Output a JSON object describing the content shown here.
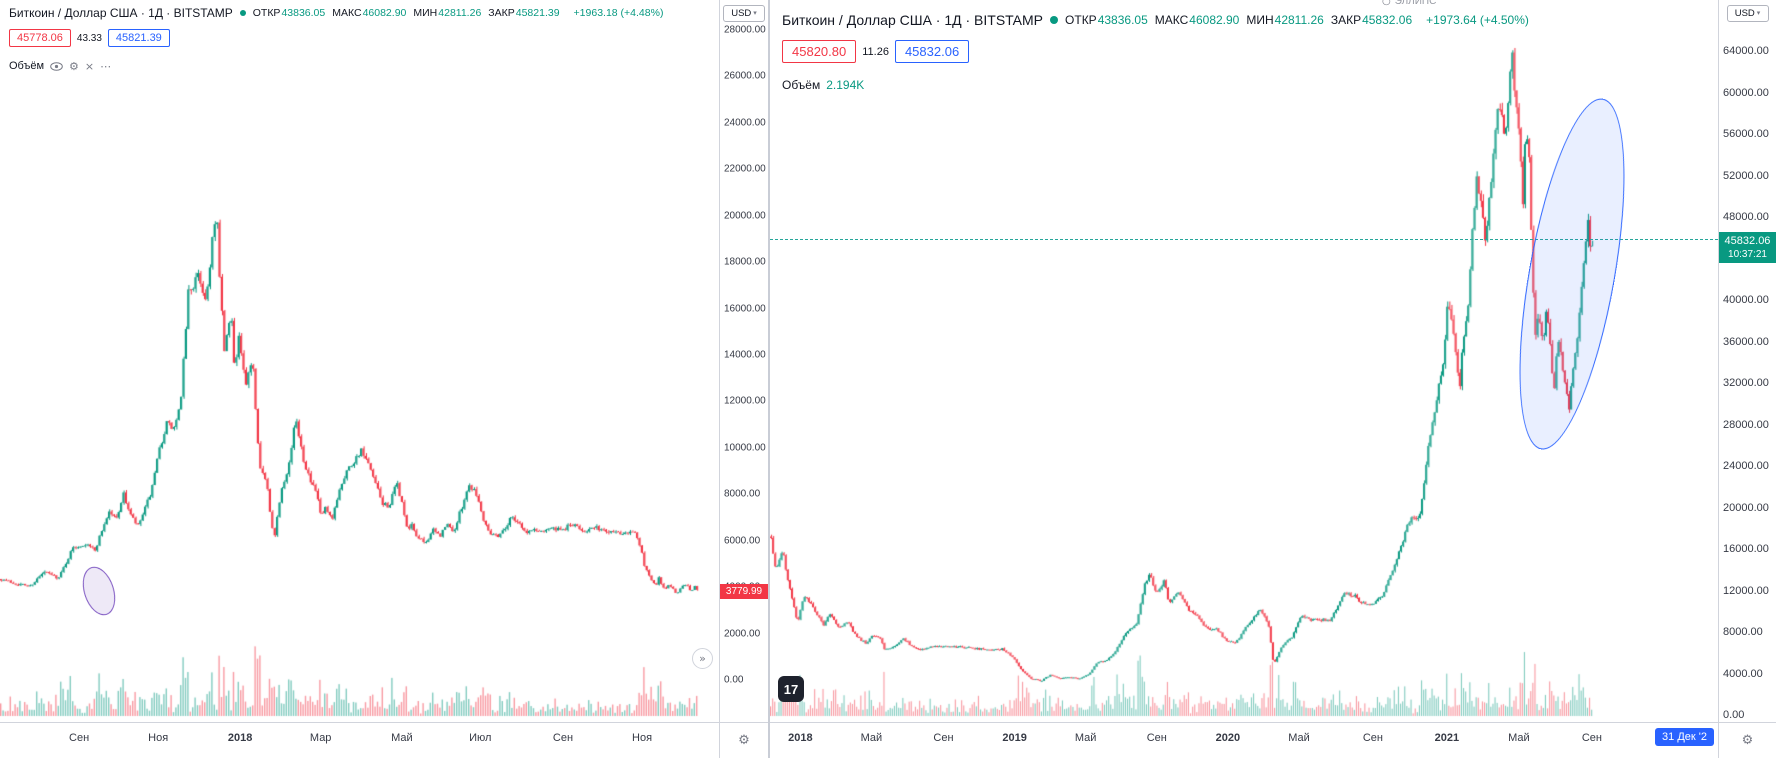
{
  "icons": {
    "gear": "⚙",
    "close": "×",
    "more": "⋯",
    "caret": "▾",
    "collapse": "»",
    "circle": "○",
    "watermark": "17"
  },
  "left_window": {
    "title": "Биткоин / Доллар США · 1Д · BITSTAMP",
    "ohlc": [
      {
        "label": "ОТКР",
        "value": "43836.05"
      },
      {
        "label": "МАКС",
        "value": "46082.90"
      },
      {
        "label": "МИН",
        "value": "42811.26"
      },
      {
        "label": "ЗАКР",
        "value": "45821.39"
      }
    ],
    "change": "+1963.18 (+4.48%)",
    "sell": "45778.06",
    "spread": "43.33",
    "buy": "45821.39",
    "volume_label": "Объём",
    "currency": "USD",
    "axis": {
      "ticks": [
        "28000.00",
        "26000.00",
        "24000.00",
        "22000.00",
        "20000.00",
        "18000.00",
        "16000.00",
        "14000.00",
        "12000.00",
        "10000.00",
        "8000.00",
        "6000.00",
        "4000.00",
        "2000.00",
        "0.00"
      ],
      "tag": "3779.99"
    },
    "time": [
      {
        "label": "Сен",
        "x": 11,
        "bold": false
      },
      {
        "label": "Ноя",
        "x": 22,
        "bold": false
      },
      {
        "label": "2018",
        "x": 33.4,
        "bold": true
      },
      {
        "label": "Мар",
        "x": 44.6,
        "bold": false
      },
      {
        "label": "Май",
        "x": 55.9,
        "bold": false
      },
      {
        "label": "Июл",
        "x": 66.8,
        "bold": false
      },
      {
        "label": "Сен",
        "x": 78.3,
        "bold": false
      },
      {
        "label": "Ноя",
        "x": 89.3,
        "bold": false
      }
    ]
  },
  "right_window": {
    "title": "Биткоин / Доллар США · 1Д · BITSTAMP",
    "ohlc": [
      {
        "label": "ОТКР",
        "value": "43836.05"
      },
      {
        "label": "МАКС",
        "value": "46082.90"
      },
      {
        "label": "МИН",
        "value": "42811.26"
      },
      {
        "label": "ЗАКР",
        "value": "45832.06"
      }
    ],
    "change": "+1973.64 (+4.50%)",
    "sell": "45820.80",
    "spread": "11.26",
    "buy": "45832.06",
    "volume_label": "Объём",
    "volume_value": "2.194K",
    "currency": "USD",
    "tool_label": "ЭЛЛИПС",
    "goto_date": "31 Дек '2",
    "axis": {
      "ticks": [
        "64000.00",
        "60000.00",
        "56000.00",
        "52000.00",
        "48000.00",
        "44000.00",
        "40000.00",
        "36000.00",
        "32000.00",
        "28000.00",
        "24000.00",
        "20000.00",
        "16000.00",
        "12000.00",
        "8000.00",
        "4000.00",
        "0.00"
      ],
      "tag": "45832.06",
      "countdown": "10:37:21"
    },
    "time": [
      {
        "label": "2018",
        "x": 3.2,
        "bold": true
      },
      {
        "label": "Май",
        "x": 10.7,
        "bold": false
      },
      {
        "label": "Сен",
        "x": 18.3,
        "bold": false
      },
      {
        "label": "2019",
        "x": 25.8,
        "bold": true
      },
      {
        "label": "Май",
        "x": 33.3,
        "bold": false
      },
      {
        "label": "Сен",
        "x": 40.8,
        "bold": false
      },
      {
        "label": "2020",
        "x": 48.3,
        "bold": true
      },
      {
        "label": "Май",
        "x": 55.8,
        "bold": false
      },
      {
        "label": "Сен",
        "x": 63.6,
        "bold": false
      },
      {
        "label": "2021",
        "x": 71.4,
        "bold": true
      },
      {
        "label": "Май",
        "x": 79.0,
        "bold": false
      },
      {
        "label": "Сен",
        "x": 86.7,
        "bold": false
      }
    ]
  },
  "chart_data": [
    {
      "type": "candlestick",
      "title": "Биткоин / Доллар США · 1Д · BITSTAMP",
      "period": "Сен 2017 — Дек 2018",
      "x_ticks": [
        "Сен",
        "Ноя",
        "2018",
        "Мар",
        "Май",
        "Июл",
        "Сен",
        "Ноя"
      ],
      "y_max": 28000,
      "y_ticks": [
        28000,
        26000,
        24000,
        22000,
        20000,
        18000,
        16000,
        14000,
        12000,
        10000,
        8000,
        6000,
        4000,
        2000,
        0
      ],
      "last_price": 3779.99,
      "up_color": "#089981",
      "down_color": "#f23645",
      "volume_histogram": true,
      "annotations": [
        {
          "type": "ellipse",
          "color": "#7e57c2",
          "note": "small ellipse around Oct 2017 consolidation"
        }
      ],
      "anchors": [
        [
          0,
          4350
        ],
        [
          0.02,
          4150
        ],
        [
          0.04,
          4050
        ],
        [
          0.06,
          4650
        ],
        [
          0.08,
          4400
        ],
        [
          0.1,
          5700
        ],
        [
          0.12,
          5900
        ],
        [
          0.13,
          5550
        ],
        [
          0.14,
          6450
        ],
        [
          0.15,
          7250
        ],
        [
          0.16,
          6950
        ],
        [
          0.17,
          8000
        ],
        [
          0.18,
          7100
        ],
        [
          0.19,
          6600
        ],
        [
          0.2,
          7350
        ],
        [
          0.21,
          8250
        ],
        [
          0.22,
          9900
        ],
        [
          0.23,
          11050
        ],
        [
          0.24,
          10800
        ],
        [
          0.25,
          11900
        ],
        [
          0.26,
          16700
        ],
        [
          0.275,
          17400
        ],
        [
          0.285,
          16300
        ],
        [
          0.295,
          19400
        ],
        [
          0.3,
          19666
        ],
        [
          0.305,
          16800
        ],
        [
          0.31,
          14100
        ],
        [
          0.32,
          15800
        ],
        [
          0.325,
          13200
        ],
        [
          0.33,
          14900
        ],
        [
          0.34,
          12600
        ],
        [
          0.35,
          13800
        ],
        [
          0.355,
          11100
        ],
        [
          0.36,
          9300
        ],
        [
          0.37,
          8300
        ],
        [
          0.375,
          6900
        ],
        [
          0.38,
          6200
        ],
        [
          0.39,
          8300
        ],
        [
          0.4,
          9250
        ],
        [
          0.41,
          11300
        ],
        [
          0.42,
          9600
        ],
        [
          0.43,
          8550
        ],
        [
          0.44,
          7900
        ],
        [
          0.445,
          6950
        ],
        [
          0.45,
          7400
        ],
        [
          0.46,
          6850
        ],
        [
          0.47,
          8200
        ],
        [
          0.48,
          9000
        ],
        [
          0.49,
          9400
        ],
        [
          0.5,
          9900
        ],
        [
          0.51,
          9300
        ],
        [
          0.52,
          8500
        ],
        [
          0.53,
          7600
        ],
        [
          0.54,
          7500
        ],
        [
          0.55,
          8500
        ],
        [
          0.56,
          7300
        ],
        [
          0.565,
          6350
        ],
        [
          0.57,
          6700
        ],
        [
          0.58,
          6100
        ],
        [
          0.59,
          5900
        ],
        [
          0.6,
          6450
        ],
        [
          0.61,
          6200
        ],
        [
          0.62,
          6700
        ],
        [
          0.63,
          6400
        ],
        [
          0.64,
          7400
        ],
        [
          0.65,
          8400
        ],
        [
          0.66,
          8150
        ],
        [
          0.67,
          7000
        ],
        [
          0.68,
          6350
        ],
        [
          0.69,
          6200
        ],
        [
          0.7,
          6500
        ],
        [
          0.71,
          7050
        ],
        [
          0.72,
          6800
        ],
        [
          0.73,
          6300
        ],
        [
          0.74,
          6500
        ],
        [
          0.75,
          6400
        ],
        [
          0.76,
          6550
        ],
        [
          0.77,
          6500
        ],
        [
          0.78,
          6400
        ],
        [
          0.79,
          6700
        ],
        [
          0.8,
          6600
        ],
        [
          0.81,
          6450
        ],
        [
          0.82,
          6500
        ],
        [
          0.83,
          6550
        ],
        [
          0.84,
          6400
        ],
        [
          0.85,
          6450
        ],
        [
          0.86,
          6350
        ],
        [
          0.87,
          6400
        ],
        [
          0.88,
          6450
        ],
        [
          0.89,
          5600
        ],
        [
          0.895,
          4900
        ],
        [
          0.905,
          4300
        ],
        [
          0.91,
          4000
        ],
        [
          0.915,
          4450
        ],
        [
          0.92,
          3900
        ],
        [
          0.93,
          4100
        ],
        [
          0.94,
          3700
        ],
        [
          0.95,
          4200
        ],
        [
          0.96,
          3800
        ],
        [
          0.965,
          4050
        ],
        [
          0.97,
          3780
        ]
      ]
    },
    {
      "type": "candlestick",
      "title": "Биткоин / Доллар США · 1Д · BITSTAMP",
      "period": "Янв 2018 — Сен 2021",
      "x_ticks": [
        "2018",
        "Май",
        "Сен",
        "2019",
        "Май",
        "Сен",
        "2020",
        "Май",
        "Сен",
        "2021",
        "Май",
        "Сен"
      ],
      "y_max": 64000,
      "y_ticks": [
        64000,
        60000,
        56000,
        52000,
        48000,
        44000,
        40000,
        36000,
        32000,
        28000,
        24000,
        20000,
        16000,
        12000,
        8000,
        4000,
        0
      ],
      "last_price": 45832.06,
      "up_color": "#089981",
      "down_color": "#f23645",
      "volume_histogram": true,
      "annotations": [
        {
          "type": "ellipse",
          "color": "#2962ff",
          "note": "large ellipse around May-Jul 2021 correction"
        }
      ],
      "anchors": [
        [
          0,
          17200
        ],
        [
          0.005,
          14000
        ],
        [
          0.012,
          15800
        ],
        [
          0.02,
          12000
        ],
        [
          0.028,
          9000
        ],
        [
          0.035,
          11500
        ],
        [
          0.045,
          10200
        ],
        [
          0.055,
          8700
        ],
        [
          0.062,
          9800
        ],
        [
          0.072,
          8300
        ],
        [
          0.08,
          9000
        ],
        [
          0.09,
          7600
        ],
        [
          0.1,
          6900
        ],
        [
          0.107,
          7700
        ],
        [
          0.115,
          7300
        ],
        [
          0.12,
          6350
        ],
        [
          0.13,
          6600
        ],
        [
          0.14,
          7400
        ],
        [
          0.15,
          6450
        ],
        [
          0.16,
          6300
        ],
        [
          0.17,
          6550
        ],
        [
          0.19,
          6650
        ],
        [
          0.21,
          6450
        ],
        [
          0.23,
          6300
        ],
        [
          0.245,
          6350
        ],
        [
          0.255,
          5600
        ],
        [
          0.265,
          4200
        ],
        [
          0.275,
          3500
        ],
        [
          0.285,
          3300
        ],
        [
          0.295,
          3900
        ],
        [
          0.305,
          3500
        ],
        [
          0.315,
          3650
        ],
        [
          0.325,
          3450
        ],
        [
          0.335,
          3950
        ],
        [
          0.345,
          5100
        ],
        [
          0.355,
          5250
        ],
        [
          0.365,
          6400
        ],
        [
          0.375,
          8100
        ],
        [
          0.385,
          8600
        ],
        [
          0.395,
          12800
        ],
        [
          0.4,
          13800
        ],
        [
          0.405,
          11800
        ],
        [
          0.415,
          12900
        ],
        [
          0.42,
          10700
        ],
        [
          0.43,
          11900
        ],
        [
          0.44,
          10200
        ],
        [
          0.45,
          9500
        ],
        [
          0.46,
          8300
        ],
        [
          0.47,
          8300
        ],
        [
          0.48,
          7200
        ],
        [
          0.49,
          6900
        ],
        [
          0.5,
          8300
        ],
        [
          0.51,
          9500
        ],
        [
          0.515,
          10200
        ],
        [
          0.52,
          9600
        ],
        [
          0.525,
          8600
        ],
        [
          0.53,
          4900
        ],
        [
          0.54,
          6800
        ],
        [
          0.55,
          7600
        ],
        [
          0.56,
          9600
        ],
        [
          0.57,
          9100
        ],
        [
          0.58,
          9200
        ],
        [
          0.59,
          9150
        ],
        [
          0.6,
          10900
        ],
        [
          0.605,
          11800
        ],
        [
          0.615,
          11500
        ],
        [
          0.625,
          10700
        ],
        [
          0.635,
          10800
        ],
        [
          0.645,
          11500
        ],
        [
          0.655,
          13800
        ],
        [
          0.665,
          16300
        ],
        [
          0.675,
          19200
        ],
        [
          0.68,
          18800
        ],
        [
          0.685,
          19400
        ],
        [
          0.69,
          23500
        ],
        [
          0.695,
          27000
        ],
        [
          0.7,
          29000
        ],
        [
          0.705,
          32000
        ],
        [
          0.71,
          34500
        ],
        [
          0.714,
          40500
        ],
        [
          0.718,
          38000
        ],
        [
          0.722,
          35500
        ],
        [
          0.726,
          31500
        ],
        [
          0.73,
          36000
        ],
        [
          0.735,
          38500
        ],
        [
          0.74,
          46500
        ],
        [
          0.745,
          52000
        ],
        [
          0.75,
          48500
        ],
        [
          0.754,
          45000
        ],
        [
          0.758,
          50000
        ],
        [
          0.762,
          54500
        ],
        [
          0.766,
          57500
        ],
        [
          0.77,
          58300
        ],
        [
          0.774,
          54500
        ],
        [
          0.778,
          59800
        ],
        [
          0.782,
          63200
        ],
        [
          0.786,
          58000
        ],
        [
          0.79,
          56000
        ],
        [
          0.793,
          49000
        ],
        [
          0.796,
          57000
        ],
        [
          0.8,
          53000
        ],
        [
          0.803,
          43000
        ],
        [
          0.806,
          36700
        ],
        [
          0.81,
          38500
        ],
        [
          0.814,
          35600
        ],
        [
          0.818,
          39000
        ],
        [
          0.822,
          35300
        ],
        [
          0.826,
          31600
        ],
        [
          0.83,
          35800
        ],
        [
          0.834,
          34200
        ],
        [
          0.838,
          31400
        ],
        [
          0.842,
          29800
        ],
        [
          0.846,
          33500
        ],
        [
          0.85,
          35500
        ],
        [
          0.853,
          39500
        ],
        [
          0.856,
          42200
        ],
        [
          0.859,
          44600
        ],
        [
          0.862,
          47800
        ],
        [
          0.865,
          44400
        ],
        [
          0.867,
          45832
        ]
      ]
    }
  ]
}
